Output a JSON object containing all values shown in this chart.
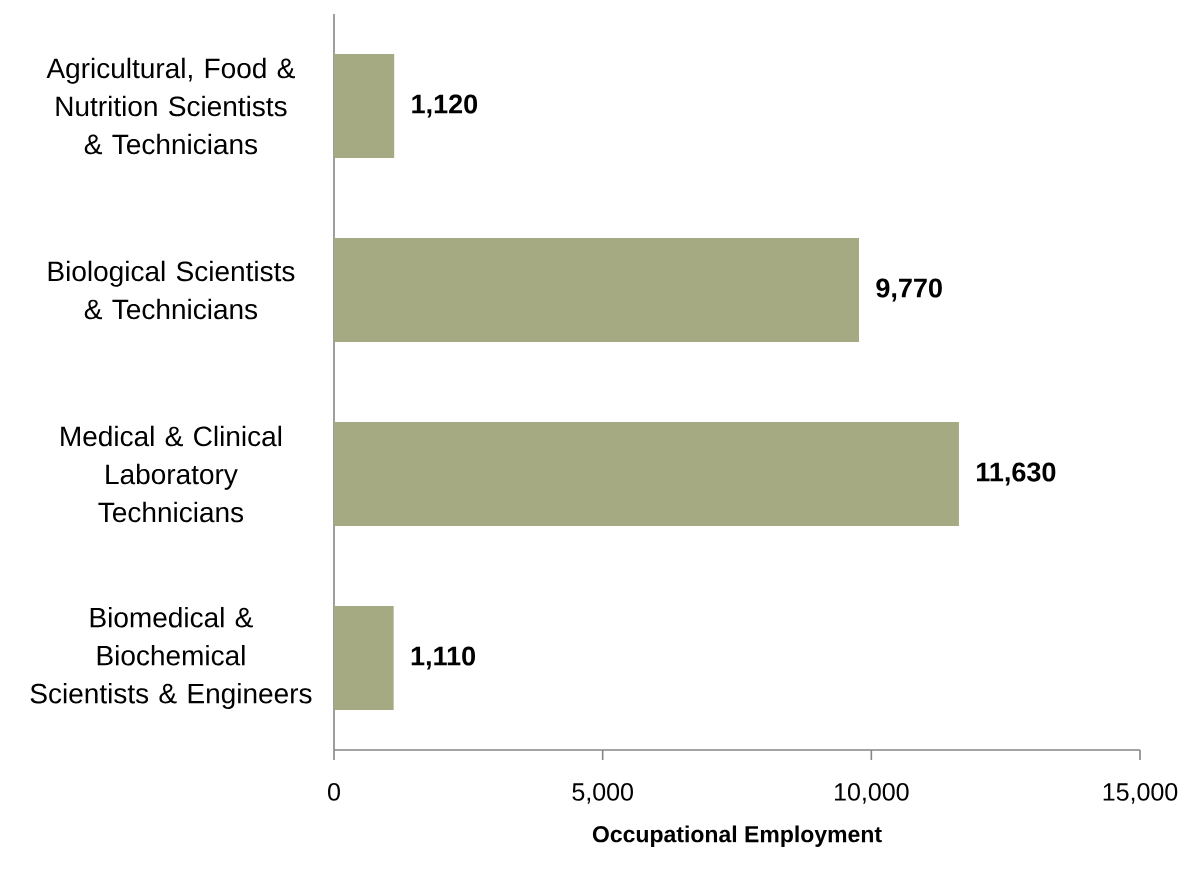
{
  "chart_data": {
    "type": "bar",
    "orientation": "horizontal",
    "categories": [
      "Agricultural, Food & Nutrition Scientists & Technicians",
      "Biological Scientists & Technicians",
      "Medical & Clinical Laboratory Technicians",
      "Biomedical & Biochemical Scientists & Engineers"
    ],
    "values": [
      1120,
      9770,
      11630,
      1110
    ],
    "color": "#a5aa82",
    "value_labels": [
      "1,120",
      "9,770",
      "11,630",
      "1,110"
    ],
    "xlabel": "Occupational Employment",
    "xlim": [
      0,
      15000
    ],
    "xticks": [
      0,
      {
        "value": 5000,
        "label": "5,000"
      },
      {
        "value": 10000,
        "label": "10,000"
      },
      {
        "value": 15000,
        "label": "15,000"
      }
    ]
  }
}
